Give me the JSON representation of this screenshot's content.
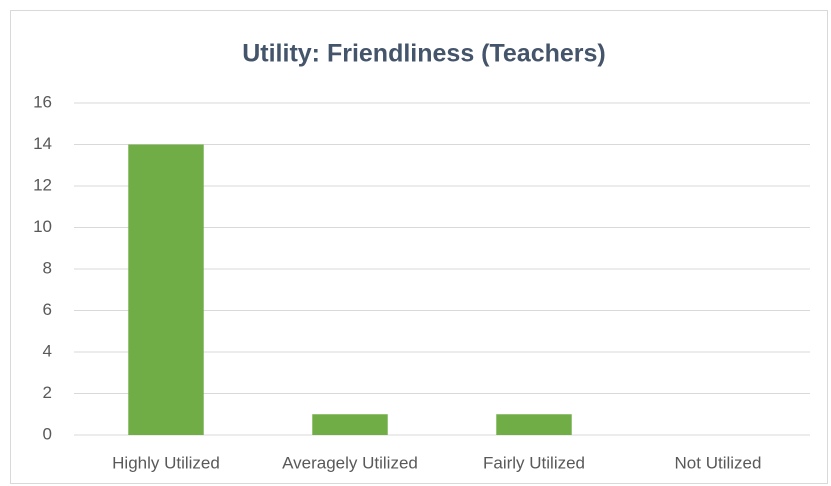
{
  "chart_data": {
    "type": "bar",
    "title": "Utility: Friendliness (Teachers)",
    "categories": [
      "Highly Utilized",
      "Averagely Utilized",
      "Fairly Utilized",
      "Not Utilized"
    ],
    "values": [
      14,
      1,
      1,
      0
    ],
    "color": "#70ad47",
    "ylim": [
      0,
      16
    ],
    "yticks": [
      0,
      2,
      4,
      6,
      8,
      10,
      12,
      14,
      16
    ],
    "grid": true
  }
}
